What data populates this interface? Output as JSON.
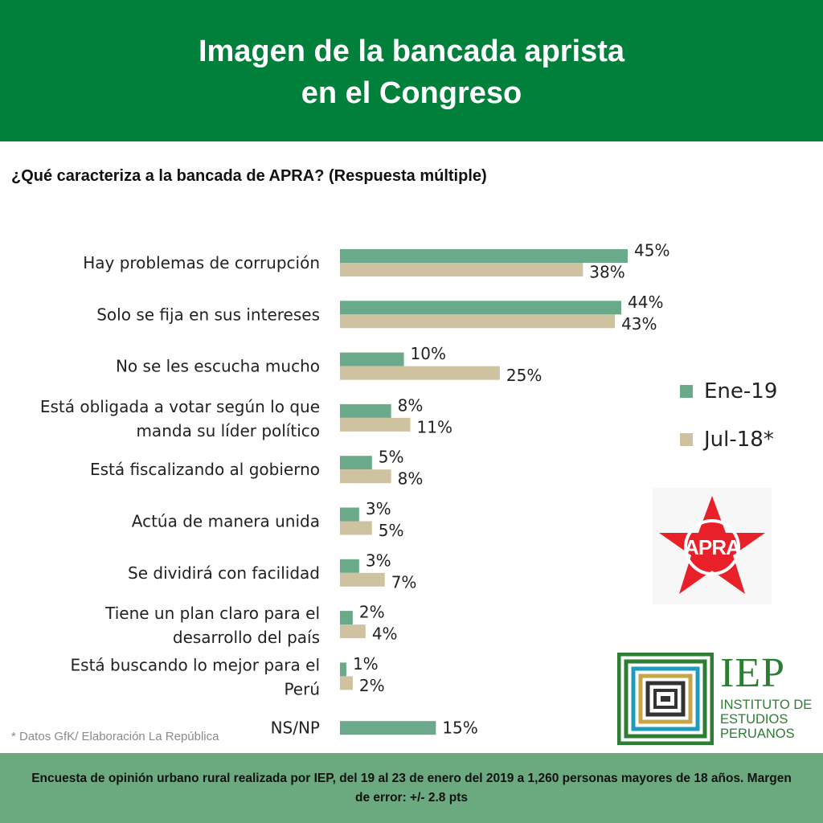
{
  "header": {
    "title_line1": "Imagen de la bancada aprista",
    "title_line2": "en el Congreso"
  },
  "question": {
    "main": "¿Qué caracteriza a la bancada de APRA?",
    "paren": "(Respuesta múltiple)"
  },
  "colors": {
    "header_bg": "#00803a",
    "ene19": "#6aaa8a",
    "jul18": "#cfc2a0",
    "footer_bg": "#6aaa7e",
    "apra_red": "#e8202a"
  },
  "legend": {
    "items": [
      {
        "label": "Ene-19",
        "color": "#6aaa8a"
      },
      {
        "label": "Jul-18*",
        "color": "#cfc2a0"
      }
    ]
  },
  "chart_data": {
    "type": "bar",
    "orientation": "horizontal",
    "categories": [
      [
        "Hay problemas de corrupción"
      ],
      [
        "Solo se fija en sus intereses"
      ],
      [
        "No se les escucha mucho"
      ],
      [
        "Está obligada a votar según lo que",
        "manda su líder político"
      ],
      [
        "Está fiscalizando al gobierno"
      ],
      [
        "Actúa de manera unida"
      ],
      [
        "Se dividirá con facilidad"
      ],
      [
        "Tiene un plan claro para el",
        "desarrollo del país"
      ],
      [
        "Está buscando lo mejor para el",
        "Perú"
      ],
      [
        "NS/NP"
      ]
    ],
    "series": [
      {
        "name": "Ene-19",
        "values": [
          45,
          44,
          10,
          8,
          5,
          3,
          3,
          2,
          1,
          15
        ],
        "labels": [
          "45%",
          "44%",
          "10%",
          "8%",
          "5%",
          "3%",
          "3%",
          "2%",
          "1%",
          "15%"
        ]
      },
      {
        "name": "Jul-18*",
        "values": [
          38,
          43,
          25,
          11,
          8,
          5,
          7,
          4,
          2,
          null
        ],
        "labels": [
          "38%",
          "43%",
          "25%",
          "11%",
          "8%",
          "5%",
          "7%",
          "4%",
          "2%",
          ""
        ]
      }
    ],
    "xlim": [
      0,
      45
    ],
    "legend_position": "right",
    "grid": false
  },
  "logos": {
    "apra_text": "APRA",
    "iep_name": "IEP",
    "iep_sub_line1": "INSTITUTO DE",
    "iep_sub_line2": "ESTUDIOS",
    "iep_sub_line3": "PERUANOS"
  },
  "source_note": "* Datos GfK/ Elaboración La República",
  "footer": {
    "text": "Encuesta de opinión urbano rural realizada por IEP, del 19 al 23 de enero del 2019 a 1,260 personas mayores de 18 años. Margen de error: +/- 2.8 pts"
  }
}
